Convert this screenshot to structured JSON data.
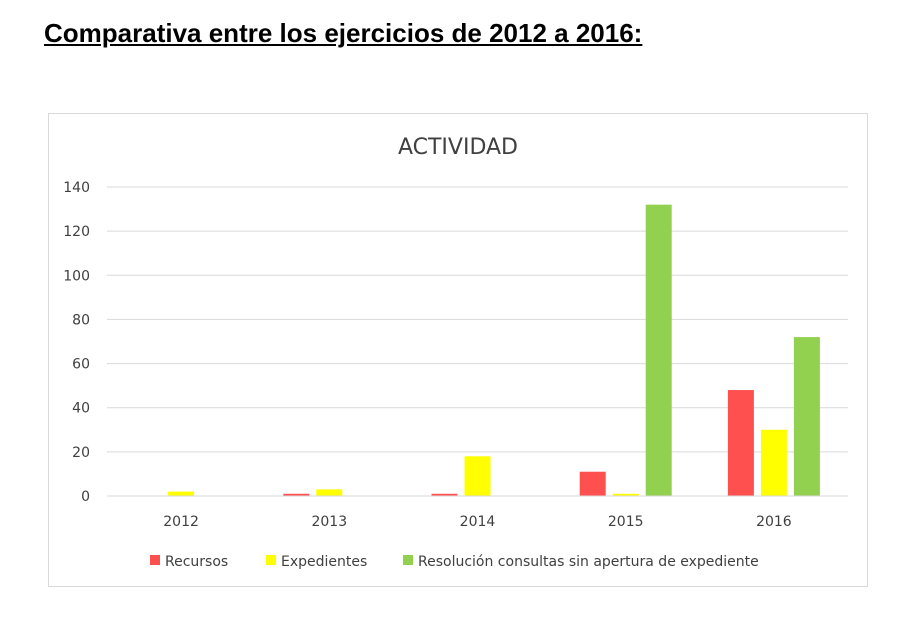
{
  "page": {
    "heading": "Comparativa entre los ejercicios de 2012 a 2016:"
  },
  "chart_data": {
    "type": "bar",
    "title": "ACTIVIDAD",
    "xlabel": "",
    "ylabel": "",
    "categories": [
      "2012",
      "2013",
      "2014",
      "2015",
      "2016"
    ],
    "ylim": [
      0,
      140
    ],
    "yticks": [
      0,
      20,
      40,
      60,
      80,
      100,
      120,
      140
    ],
    "grid": true,
    "legend_position": "bottom",
    "series": [
      {
        "name": "Recursos",
        "color": "#ff5050",
        "values": [
          0,
          1,
          1,
          11,
          48
        ]
      },
      {
        "name": "Expedientes",
        "color": "#ffff00",
        "values": [
          2,
          3,
          18,
          1,
          30
        ]
      },
      {
        "name": "Resolución consultas sin apertura de expediente",
        "color": "#92d050",
        "values": [
          0,
          0,
          0,
          132,
          72
        ]
      }
    ]
  }
}
